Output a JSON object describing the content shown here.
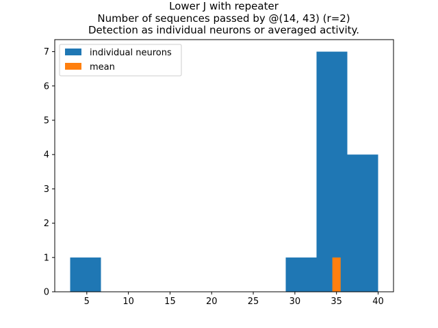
{
  "chart_data": {
    "type": "bar",
    "title_lines": [
      "Lower J with repeater",
      "Number of sequences passed by @(14, 43) (r=2)",
      "Detection as individual neurons or averaged activity."
    ],
    "xlabel": "",
    "ylabel": "",
    "xlim": [
      1.15,
      41.85
    ],
    "ylim": [
      0,
      7.35
    ],
    "x_ticks": [
      5,
      10,
      15,
      20,
      25,
      30,
      35,
      40
    ],
    "y_ticks": [
      0,
      1,
      2,
      3,
      4,
      5,
      6,
      7
    ],
    "grid": false,
    "legend_position": "upper-left",
    "series": [
      {
        "name": "individual neurons",
        "color": "#1f77b4",
        "bins": [
          {
            "x0": 3.0,
            "x1": 6.7,
            "value": 1
          },
          {
            "x0": 6.7,
            "x1": 10.4,
            "value": 0
          },
          {
            "x0": 10.4,
            "x1": 14.1,
            "value": 0
          },
          {
            "x0": 14.1,
            "x1": 17.8,
            "value": 0
          },
          {
            "x0": 17.8,
            "x1": 21.5,
            "value": 0
          },
          {
            "x0": 21.5,
            "x1": 25.2,
            "value": 0
          },
          {
            "x0": 25.2,
            "x1": 28.9,
            "value": 0
          },
          {
            "x0": 28.9,
            "x1": 32.6,
            "value": 1
          },
          {
            "x0": 32.6,
            "x1": 36.3,
            "value": 7
          },
          {
            "x0": 36.3,
            "x1": 40.0,
            "value": 4
          }
        ]
      },
      {
        "name": "mean",
        "color": "#ff7f0e",
        "bins": [
          {
            "x0": 34.5,
            "x1": 35.5,
            "value": 1
          }
        ]
      }
    ]
  }
}
